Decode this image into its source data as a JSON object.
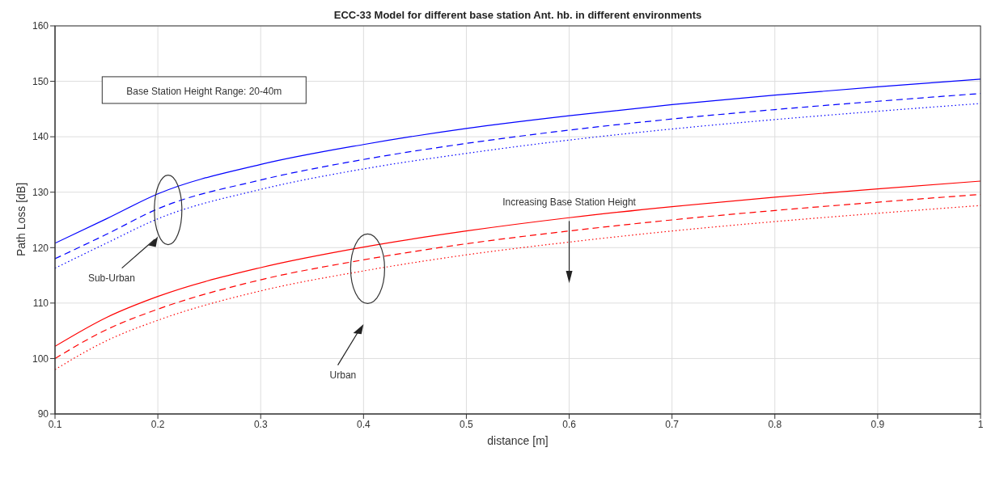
{
  "chart_data": {
    "type": "line",
    "title": "ECC-33 Model for different base station Ant. hb. in different environments",
    "xlabel": "distance [m]",
    "ylabel": "Path Loss [dB]",
    "x": [
      0.1,
      0.15,
      0.2,
      0.3,
      0.4,
      0.5,
      0.6,
      0.7,
      0.8,
      0.9,
      1
    ],
    "series": [
      {
        "color": "#0000ff",
        "line_style": "solid",
        "values": [
          120.8,
          125.2,
          129.7,
          135.0,
          138.6,
          141.5,
          143.8,
          145.8,
          147.5,
          149.0,
          150.4
        ]
      },
      {
        "color": "#0000ff",
        "line_style": "dashed",
        "values": [
          118.0,
          122.4,
          127.0,
          132.2,
          135.9,
          138.8,
          141.2,
          143.2,
          144.9,
          146.4,
          147.8
        ]
      },
      {
        "color": "#0000ff",
        "line_style": "dotted",
        "values": [
          116.3,
          120.8,
          125.2,
          130.5,
          134.2,
          137.0,
          139.4,
          141.4,
          143.1,
          144.6,
          146.0
        ]
      },
      {
        "color": "#ff0000",
        "line_style": "solid",
        "values": [
          102.2,
          107.4,
          111.2,
          116.4,
          120.1,
          123.0,
          125.4,
          127.4,
          129.1,
          130.6,
          132.0
        ]
      },
      {
        "color": "#ff0000",
        "line_style": "dashed",
        "values": [
          100.0,
          105.2,
          108.9,
          114.2,
          117.8,
          120.7,
          123.0,
          125.0,
          126.7,
          128.2,
          129.6
        ]
      },
      {
        "color": "#ff0000",
        "line_style": "dotted",
        "values": [
          98.0,
          103.2,
          106.9,
          112.2,
          115.8,
          118.7,
          121.0,
          123.0,
          124.7,
          126.2,
          127.6
        ]
      }
    ],
    "xlim": [
      0.1,
      1
    ],
    "xticks": [
      0.1,
      0.2,
      0.3,
      0.4,
      0.5,
      0.6,
      0.7,
      0.8,
      0.9,
      1
    ],
    "ylim": [
      90,
      160
    ],
    "yticks": [
      90,
      100,
      110,
      120,
      130,
      140,
      150,
      160
    ],
    "grid": true,
    "marker": "none",
    "annotations": [
      "Base Station Height Range: 20-40m",
      "Sub-Urban",
      "Urban",
      "Increasing Base Station Height"
    ]
  }
}
